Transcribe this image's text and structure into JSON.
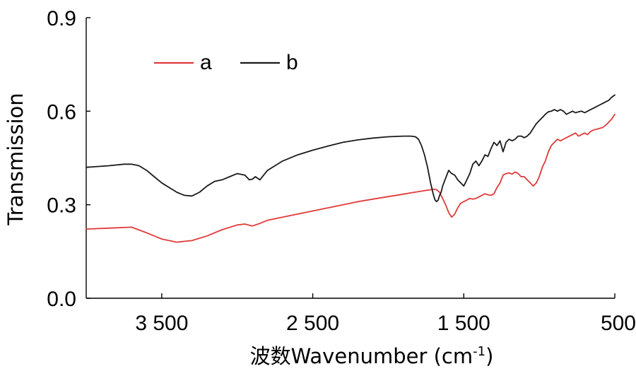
{
  "chart_data": {
    "type": "line",
    "title": "",
    "xlabel": "波数Wavenumber (cm",
    "xlabel_sup": "-1",
    "xlabel_close": ")",
    "ylabel": "Transmission",
    "xlim": [
      4000,
      500
    ],
    "ylim": [
      0.0,
      0.9
    ],
    "x_reversed": true,
    "x_ticks": [
      {
        "value": 3500,
        "label": "3 500"
      },
      {
        "value": 2500,
        "label": "2 500"
      },
      {
        "value": 1500,
        "label": "1 500"
      },
      {
        "value": 500,
        "label": "500"
      }
    ],
    "y_ticks": [
      {
        "value": 0.0,
        "label": "0.0"
      },
      {
        "value": 0.3,
        "label": "0.3"
      },
      {
        "value": 0.6,
        "label": "0.6"
      },
      {
        "value": 0.9,
        "label": "0.9"
      }
    ],
    "grid": false,
    "legend_position": "top-left",
    "series": [
      {
        "name": "a",
        "color": "#e03a3a",
        "x": [
          4000,
          3850,
          3700,
          3600,
          3500,
          3400,
          3300,
          3200,
          3100,
          3000,
          2950,
          2900,
          2850,
          2800,
          2700,
          2600,
          2500,
          2400,
          2300,
          2200,
          2100,
          2000,
          1900,
          1850,
          1800,
          1750,
          1720,
          1700,
          1680,
          1660,
          1650,
          1640,
          1620,
          1600,
          1580,
          1560,
          1540,
          1520,
          1500,
          1480,
          1460,
          1440,
          1420,
          1400,
          1380,
          1360,
          1340,
          1320,
          1300,
          1280,
          1260,
          1240,
          1220,
          1200,
          1180,
          1160,
          1140,
          1120,
          1100,
          1080,
          1060,
          1040,
          1020,
          1000,
          980,
          960,
          940,
          920,
          900,
          880,
          860,
          840,
          820,
          800,
          780,
          760,
          740,
          720,
          700,
          680,
          660,
          640,
          620,
          600,
          580,
          560,
          540,
          520,
          500
        ],
        "y": [
          0.222,
          0.225,
          0.228,
          0.21,
          0.19,
          0.18,
          0.185,
          0.2,
          0.22,
          0.235,
          0.238,
          0.232,
          0.24,
          0.25,
          0.26,
          0.27,
          0.28,
          0.29,
          0.3,
          0.31,
          0.318,
          0.326,
          0.334,
          0.338,
          0.342,
          0.346,
          0.348,
          0.35,
          0.348,
          0.34,
          0.33,
          0.32,
          0.3,
          0.275,
          0.26,
          0.27,
          0.29,
          0.305,
          0.31,
          0.315,
          0.32,
          0.318,
          0.32,
          0.325,
          0.33,
          0.335,
          0.332,
          0.33,
          0.335,
          0.355,
          0.37,
          0.395,
          0.4,
          0.402,
          0.398,
          0.405,
          0.4,
          0.39,
          0.39,
          0.38,
          0.37,
          0.36,
          0.37,
          0.39,
          0.42,
          0.44,
          0.47,
          0.49,
          0.5,
          0.51,
          0.505,
          0.51,
          0.515,
          0.52,
          0.525,
          0.53,
          0.52,
          0.525,
          0.53,
          0.525,
          0.535,
          0.54,
          0.542,
          0.545,
          0.548,
          0.555,
          0.565,
          0.575,
          0.59
        ]
      },
      {
        "name": "b",
        "color": "#1a1a1a",
        "x": [
          4000,
          3850,
          3750,
          3700,
          3650,
          3600,
          3550,
          3500,
          3450,
          3400,
          3350,
          3300,
          3250,
          3200,
          3150,
          3100,
          3050,
          3000,
          2950,
          2920,
          2900,
          2880,
          2850,
          2800,
          2700,
          2600,
          2500,
          2400,
          2300,
          2200,
          2100,
          2000,
          1900,
          1850,
          1820,
          1800,
          1780,
          1760,
          1740,
          1720,
          1700,
          1690,
          1680,
          1670,
          1660,
          1650,
          1640,
          1620,
          1600,
          1580,
          1560,
          1540,
          1520,
          1500,
          1480,
          1460,
          1440,
          1420,
          1400,
          1380,
          1360,
          1340,
          1320,
          1300,
          1280,
          1260,
          1240,
          1220,
          1200,
          1180,
          1160,
          1140,
          1120,
          1100,
          1080,
          1060,
          1040,
          1020,
          1000,
          980,
          960,
          940,
          920,
          900,
          880,
          860,
          840,
          820,
          800,
          780,
          760,
          740,
          720,
          700,
          680,
          660,
          640,
          620,
          600,
          580,
          560,
          540,
          520,
          500
        ],
        "y": [
          0.42,
          0.425,
          0.43,
          0.43,
          0.425,
          0.41,
          0.39,
          0.37,
          0.355,
          0.34,
          0.33,
          0.328,
          0.34,
          0.36,
          0.375,
          0.38,
          0.39,
          0.4,
          0.395,
          0.38,
          0.382,
          0.39,
          0.38,
          0.41,
          0.44,
          0.46,
          0.475,
          0.488,
          0.5,
          0.508,
          0.514,
          0.518,
          0.52,
          0.52,
          0.518,
          0.51,
          0.49,
          0.46,
          0.42,
          0.37,
          0.33,
          0.315,
          0.31,
          0.315,
          0.33,
          0.34,
          0.36,
          0.385,
          0.41,
          0.4,
          0.395,
          0.38,
          0.37,
          0.36,
          0.38,
          0.4,
          0.43,
          0.44,
          0.425,
          0.44,
          0.46,
          0.455,
          0.48,
          0.5,
          0.49,
          0.505,
          0.47,
          0.5,
          0.51,
          0.505,
          0.51,
          0.52,
          0.52,
          0.515,
          0.52,
          0.53,
          0.545,
          0.56,
          0.57,
          0.58,
          0.59,
          0.598,
          0.6,
          0.605,
          0.6,
          0.605,
          0.6,
          0.59,
          0.595,
          0.6,
          0.595,
          0.598,
          0.6,
          0.595,
          0.6,
          0.605,
          0.61,
          0.615,
          0.62,
          0.625,
          0.63,
          0.635,
          0.645,
          0.652
        ]
      }
    ]
  }
}
